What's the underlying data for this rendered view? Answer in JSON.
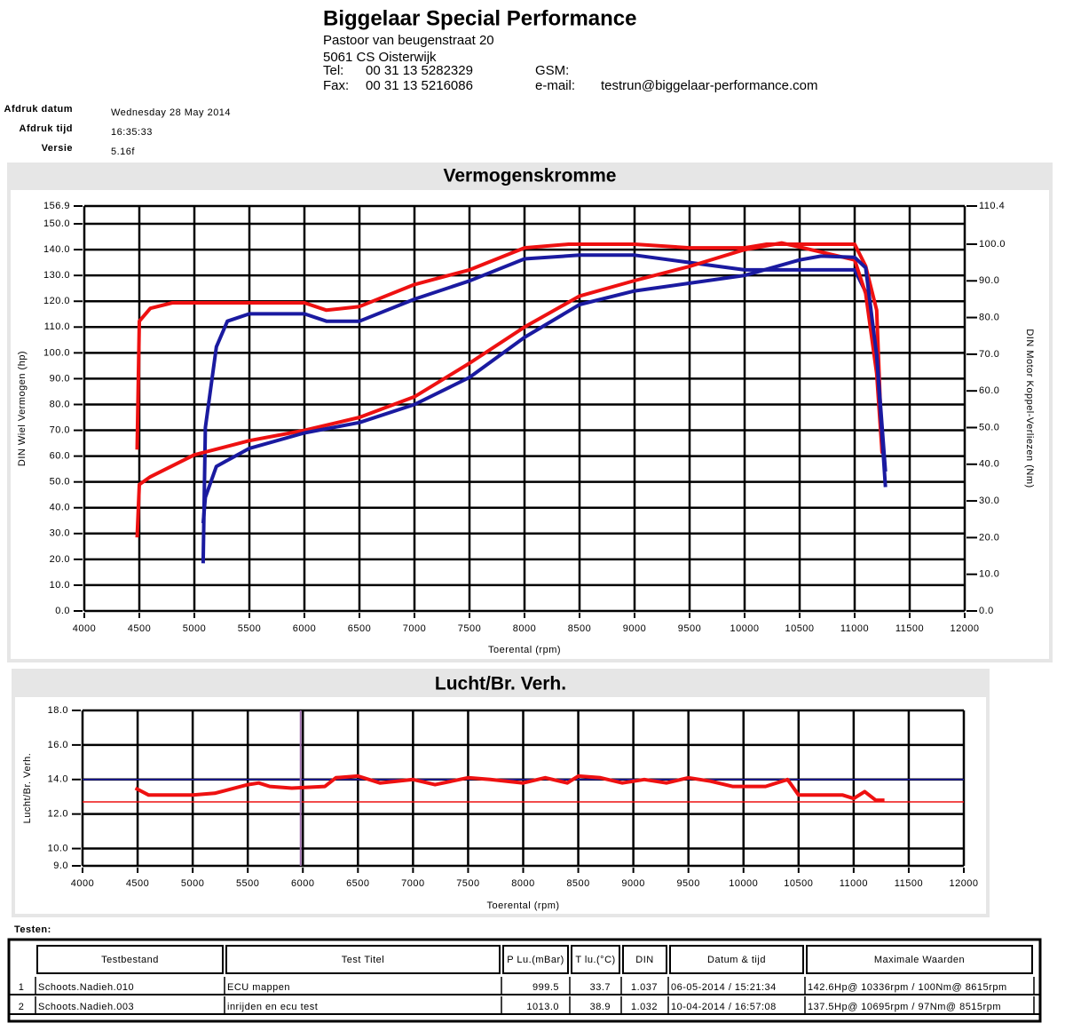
{
  "header": {
    "title": "Biggelaar Special Performance",
    "address": [
      "Pastoor van beugenstraat  20",
      "5061 CS Oisterwijk"
    ],
    "tel_label": "Tel:",
    "tel": "00 31 13 5282329",
    "gsm_label": "GSM:",
    "fax_label": "Fax:",
    "fax": "00 31 13 5216086",
    "email_label": "e-mail:",
    "email": "testrun@biggelaar-performance.com"
  },
  "print_info": {
    "date_label": "Afdruk datum",
    "date": "Wednesday 28 May 2014",
    "time_label": "Afdruk tijd",
    "time": "16:35:33",
    "version_label": "Versie",
    "version": "5.16f"
  },
  "chart_data": [
    {
      "type": "line",
      "title": "Vermogenskromme",
      "x_label": "Toerental (rpm)",
      "y_label": "DIN Wiel Vermogen (hp)",
      "y2_label": "DIN Motor Koppel-Verliezen (Nm)",
      "xlim": [
        4000,
        12000
      ],
      "xticks": [
        4000,
        4500,
        5000,
        5500,
        6000,
        6500,
        7000,
        7500,
        8000,
        8500,
        9000,
        9500,
        10000,
        10500,
        11000,
        11500,
        12000
      ],
      "ylim": [
        0,
        156.9
      ],
      "yticks": [
        {
          "value": 0,
          "label": "0.0"
        },
        {
          "value": 10,
          "label": "10.0"
        },
        {
          "value": 20,
          "label": "20.0"
        },
        {
          "value": 30,
          "label": "30.0"
        },
        {
          "value": 40,
          "label": "40.0"
        },
        {
          "value": 50,
          "label": "50.0"
        },
        {
          "value": 60,
          "label": "60.0"
        },
        {
          "value": 70,
          "label": "70.0"
        },
        {
          "value": 80,
          "label": "80.0"
        },
        {
          "value": 90,
          "label": "90.0"
        },
        {
          "value": 100,
          "label": "100.0"
        },
        {
          "value": 110,
          "label": "110.0"
        },
        {
          "value": 120,
          "label": "120.0"
        },
        {
          "value": 130,
          "label": "130.0"
        },
        {
          "value": 140,
          "label": "140.0"
        },
        {
          "value": 150,
          "label": "150.0"
        },
        156.9
      ],
      "y2lim": [
        0,
        110.4
      ],
      "y2ticks": [
        {
          "value": 0,
          "label": "0.0"
        },
        {
          "value": 10,
          "label": "10.0"
        },
        {
          "value": 20,
          "label": "20.0"
        },
        {
          "value": 30,
          "label": "30.0"
        },
        {
          "value": 40,
          "label": "40.0"
        },
        {
          "value": 50,
          "label": "50.0"
        },
        {
          "value": 60,
          "label": "60.0"
        },
        {
          "value": 70,
          "label": "70.0"
        },
        {
          "value": 80,
          "label": "80.0"
        },
        {
          "value": 90,
          "label": "90.0"
        },
        {
          "value": 100,
          "label": "100.0"
        },
        110.4
      ],
      "grid": true,
      "series": [
        {
          "color": "#ee1111",
          "axis": "y2",
          "x": [
            4480,
            4500,
            4600,
            4800,
            5000,
            5500,
            6000,
            6200,
            6500,
            7000,
            7500,
            8000,
            8400,
            9000,
            9500,
            10000,
            10200,
            11000,
            11100,
            11200,
            11250
          ],
          "values": [
            44,
            79,
            82.5,
            84,
            84,
            84,
            84,
            82,
            83,
            89,
            93,
            99,
            100,
            100,
            99,
            99,
            100,
            100,
            94,
            82,
            43
          ]
        },
        {
          "color": "#1a1aa0",
          "axis": "y2",
          "x": [
            5080,
            5100,
            5200,
            5300,
            5500,
            6000,
            6200,
            6500,
            7000,
            7500,
            8000,
            8500,
            9000,
            9500,
            10000,
            10500,
            11000,
            11100,
            11200,
            11280
          ],
          "values": [
            13,
            50,
            72,
            79,
            81,
            81,
            79,
            79,
            85,
            90,
            96,
            97,
            97,
            95,
            93,
            93,
            93,
            87,
            70,
            38
          ]
        },
        {
          "color": "#ee1111",
          "x": [
            4480,
            4500,
            4600,
            5000,
            5500,
            6000,
            6500,
            7000,
            7500,
            8000,
            8500,
            9000,
            9500,
            10000,
            10336,
            10500,
            11000,
            11100,
            11200,
            11250
          ],
          "values": [
            28.5,
            49,
            52,
            60.5,
            66,
            70,
            75,
            83,
            96,
            110,
            122,
            128,
            133.5,
            140,
            142.6,
            141,
            136,
            123,
            92,
            61
          ]
        },
        {
          "color": "#1a1aa0",
          "x": [
            5080,
            5100,
            5200,
            5500,
            6000,
            6500,
            7000,
            7500,
            8000,
            8500,
            9000,
            9500,
            10000,
            10500,
            10695,
            11000,
            11100,
            11200,
            11280
          ],
          "values": [
            34,
            44,
            56,
            63,
            69,
            73,
            80,
            90.5,
            106,
            118.7,
            124,
            127,
            130,
            136,
            137.5,
            137,
            133,
            99,
            48
          ]
        }
      ]
    },
    {
      "type": "line",
      "title": "Lucht/Br. Verh.",
      "x_label": "Toerental (rpm)",
      "y_label": "Lucht/Br. Verh.",
      "xlim": [
        4000,
        12000
      ],
      "xticks": [
        4000,
        4500,
        5000,
        5500,
        6000,
        6500,
        7000,
        7500,
        8000,
        8500,
        9000,
        9500,
        10000,
        10500,
        11000,
        11500,
        12000
      ],
      "ylim": [
        9,
        18
      ],
      "yticks": [
        {
          "value": 9,
          "label": "9.0"
        },
        {
          "value": 10,
          "label": "10.0"
        },
        {
          "value": 12,
          "label": "12.0"
        },
        {
          "value": 14,
          "label": "14.0"
        },
        {
          "value": 16,
          "label": "16.0"
        },
        {
          "value": 18,
          "label": "18.0"
        }
      ],
      "grid": true,
      "reference_lines": [
        {
          "value": 14,
          "color": "#1a1aa0"
        },
        {
          "value": 12.7,
          "color": "#ee1111"
        }
      ],
      "marker_x": 5980,
      "marker_color": "#9a6aa8",
      "series": [
        {
          "color": "#ee1111",
          "x": [
            4480,
            4600,
            5000,
            5200,
            5500,
            5600,
            5700,
            5900,
            6200,
            6300,
            6500,
            6700,
            7000,
            7200,
            7500,
            7700,
            8000,
            8200,
            8400,
            8500,
            8700,
            8900,
            9100,
            9300,
            9500,
            9700,
            9900,
            10200,
            10400,
            10500,
            10900,
            11000,
            11100,
            11200,
            11280
          ],
          "values": [
            13.5,
            13.1,
            13.1,
            13.2,
            13.7,
            13.8,
            13.6,
            13.5,
            13.6,
            14.1,
            14.2,
            13.8,
            14.0,
            13.7,
            14.1,
            14.0,
            13.8,
            14.1,
            13.8,
            14.2,
            14.1,
            13.8,
            14.0,
            13.8,
            14.1,
            13.9,
            13.6,
            13.6,
            14.0,
            13.1,
            13.1,
            12.9,
            13.3,
            12.8,
            12.8
          ]
        }
      ]
    }
  ],
  "tests_label": "Testen:",
  "table": {
    "columns": [
      "Testbestand",
      "Test Titel",
      "P Lu.(mBar)",
      "T lu.(°C)",
      "DIN",
      "Datum & tijd",
      "Maximale Waarden"
    ],
    "row_colors": [
      "#dd0000",
      "#1a1aa0"
    ],
    "rows": [
      [
        "1",
        "Schoots.Nadieh.010",
        "ECU mappen",
        "999.5",
        "33.7",
        "1.037",
        "06-05-2014 / 15:21:34",
        "142.6Hp@ 10336rpm / 100Nm@ 8615rpm"
      ],
      [
        "2",
        "Schoots.Nadieh.003",
        "inrijden en ecu test",
        "1013.0",
        "38.9",
        "1.032",
        "10-04-2014 / 16:57:08",
        "137.5Hp@ 10695rpm / 97Nm@ 8515rpm"
      ]
    ]
  }
}
